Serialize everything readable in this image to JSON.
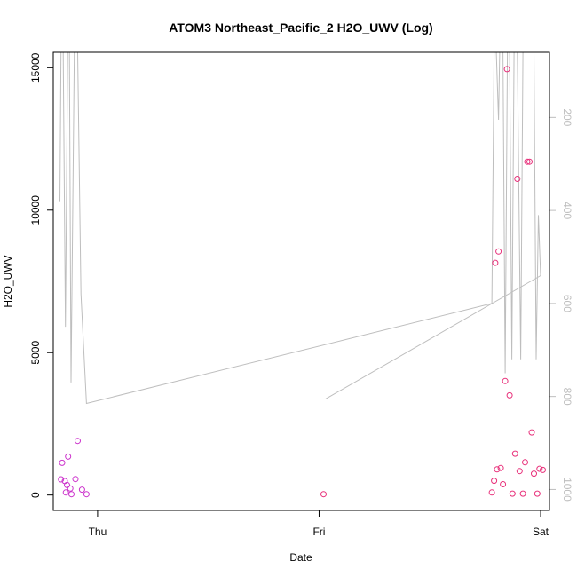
{
  "chart_data": {
    "type": "scatter",
    "title": "ATOM3 Northeast_Pacific_2 H2O_UWV (Log)",
    "xlabel": "Date",
    "ylabel": "H2O_UWV",
    "x_ticks": [
      {
        "label": "Thu",
        "value": 0
      },
      {
        "label": "Fri",
        "value": 1
      },
      {
        "label": "Sat",
        "value": 2
      }
    ],
    "xlim": [
      -0.2,
      2.04
    ],
    "y_ticks": [
      0,
      5000,
      10000,
      15000
    ],
    "y_tick_labels": [
      "0",
      "5000",
      "10000",
      "15000"
    ],
    "ylim": [
      -540,
      15540
    ],
    "right_axis": {
      "ticks": [
        200,
        400,
        600,
        800,
        1000
      ],
      "tick_labels": [
        "200",
        "400",
        "600",
        "800",
        "1000"
      ],
      "range_top": 60,
      "range_bottom": 1045,
      "color": "#bebebe"
    },
    "point_color_early": "#cc33cc",
    "point_color_late": "#e8307a",
    "line_color": "#bebebe",
    "points": [
      {
        "x": -0.165,
        "y": 550
      },
      {
        "x": -0.16,
        "y": 1130
      },
      {
        "x": -0.148,
        "y": 490
      },
      {
        "x": -0.143,
        "y": 90
      },
      {
        "x": -0.138,
        "y": 350
      },
      {
        "x": -0.133,
        "y": 1350
      },
      {
        "x": -0.123,
        "y": 230
      },
      {
        "x": -0.118,
        "y": 30
      },
      {
        "x": -0.1,
        "y": 560
      },
      {
        "x": -0.09,
        "y": 1900
      },
      {
        "x": -0.07,
        "y": 190
      },
      {
        "x": -0.05,
        "y": 30
      },
      {
        "x": 1.02,
        "y": 30
      },
      {
        "x": 1.78,
        "y": 90
      },
      {
        "x": 1.79,
        "y": 500
      },
      {
        "x": 1.795,
        "y": 8150
      },
      {
        "x": 1.803,
        "y": 900
      },
      {
        "x": 1.81,
        "y": 8550
      },
      {
        "x": 1.82,
        "y": 950
      },
      {
        "x": 1.83,
        "y": 380
      },
      {
        "x": 1.84,
        "y": 4000
      },
      {
        "x": 1.848,
        "y": 14950
      },
      {
        "x": 1.86,
        "y": 3500
      },
      {
        "x": 1.873,
        "y": 50
      },
      {
        "x": 1.885,
        "y": 1450
      },
      {
        "x": 1.895,
        "y": 11100
      },
      {
        "x": 1.905,
        "y": 840
      },
      {
        "x": 1.92,
        "y": 50
      },
      {
        "x": 1.93,
        "y": 1150
      },
      {
        "x": 1.94,
        "y": 11700
      },
      {
        "x": 1.95,
        "y": 11700
      },
      {
        "x": 1.96,
        "y": 2200
      },
      {
        "x": 1.97,
        "y": 750
      },
      {
        "x": 1.985,
        "y": 50
      },
      {
        "x": 1.995,
        "y": 920
      },
      {
        "x": 2.01,
        "y": 880
      }
    ],
    "pressure_line": [
      {
        "x": -0.17,
        "p": 380
      },
      {
        "x": -0.165,
        "p": 60
      },
      {
        "x": -0.155,
        "p": 60
      },
      {
        "x": -0.145,
        "p": 650
      },
      {
        "x": -0.135,
        "p": 60
      },
      {
        "x": -0.127,
        "p": 60
      },
      {
        "x": -0.12,
        "p": 770
      },
      {
        "x": -0.105,
        "p": 60
      },
      {
        "x": -0.09,
        "p": 60
      },
      {
        "x": -0.075,
        "p": 580
      },
      {
        "x": -0.05,
        "p": 815
      },
      {
        "x": 1.78,
        "p": 600
      },
      {
        "x": 1.79,
        "p": 60
      },
      {
        "x": 1.8,
        "p": 60
      },
      {
        "x": 1.81,
        "p": 205
      },
      {
        "x": 1.815,
        "p": 60
      },
      {
        "x": 1.83,
        "p": 60
      },
      {
        "x": 1.84,
        "p": 750
      },
      {
        "x": 1.85,
        "p": 60
      },
      {
        "x": 1.86,
        "p": 60
      },
      {
        "x": 1.87,
        "p": 720
      },
      {
        "x": 1.88,
        "p": 60
      },
      {
        "x": 1.895,
        "p": 60
      },
      {
        "x": 1.91,
        "p": 720
      },
      {
        "x": 1.92,
        "p": 60
      },
      {
        "x": 1.935,
        "p": 60
      },
      {
        "x": 1.945,
        "p": 60
      },
      {
        "x": 1.955,
        "p": 60
      },
      {
        "x": 1.97,
        "p": 60
      },
      {
        "x": 1.98,
        "p": 720
      },
      {
        "x": 1.99,
        "p": 410
      },
      {
        "x": 2.0,
        "p": 540
      },
      {
        "x": 1.03,
        "p": 805
      }
    ]
  }
}
